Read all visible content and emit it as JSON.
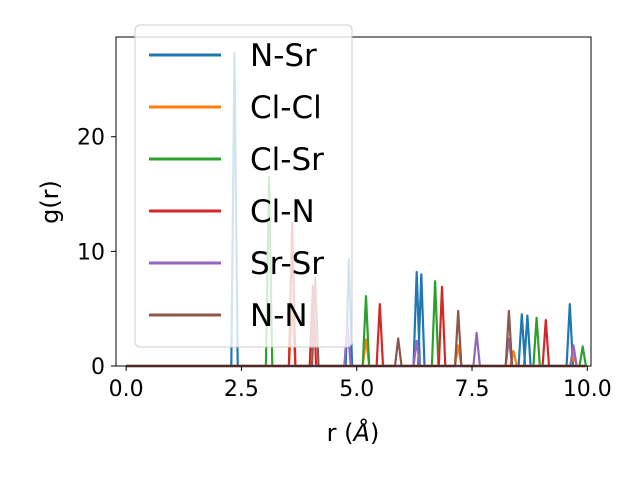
{
  "chart_data": {
    "type": "line",
    "xlabel_main": "r (",
    "xlabel_unit": "Å",
    "xlabel_close": ")",
    "ylabel": "g(r)",
    "xlim": [
      -0.22,
      10.08
    ],
    "ylim": [
      0,
      28.7
    ],
    "xticks": [
      0.0,
      2.5,
      5.0,
      7.5,
      10.0
    ],
    "xtick_labels": [
      "0.0",
      "2.5",
      "5.0",
      "7.5",
      "10.0"
    ],
    "yticks": [
      0,
      10,
      20
    ],
    "ytick_labels": [
      "0",
      "10",
      "20"
    ],
    "legend_position": "upper-left",
    "series": [
      {
        "name": "N-Sr",
        "color": "#1f77b4",
        "peaks": [
          [
            2.35,
            27.3
          ],
          [
            4.83,
            9.3
          ],
          [
            6.3,
            8.2
          ],
          [
            6.4,
            8.0
          ],
          [
            8.58,
            4.5
          ],
          [
            8.7,
            4.4
          ],
          [
            9.62,
            5.4
          ]
        ]
      },
      {
        "name": "Cl-Cl",
        "color": "#ff7f0e",
        "peaks": [
          [
            3.6,
            5.3
          ],
          [
            5.2,
            2.3
          ],
          [
            7.2,
            1.8
          ],
          [
            8.4,
            1.3
          ],
          [
            9.7,
            1.0
          ]
        ]
      },
      {
        "name": "Cl-Sr",
        "color": "#2ca02c",
        "peaks": [
          [
            3.1,
            16.5
          ],
          [
            5.2,
            6.1
          ],
          [
            6.7,
            7.4
          ],
          [
            8.9,
            4.2
          ],
          [
            9.9,
            1.7
          ]
        ]
      },
      {
        "name": "Cl-N",
        "color": "#d62728",
        "peaks": [
          [
            3.6,
            12.5
          ],
          [
            4.05,
            7.0
          ],
          [
            5.5,
            5.4
          ],
          [
            6.85,
            6.9
          ],
          [
            9.1,
            4.0
          ]
        ]
      },
      {
        "name": "Sr-Sr",
        "color": "#9467bd",
        "peaks": [
          [
            4.8,
            3.7
          ],
          [
            6.3,
            2.2
          ],
          [
            7.6,
            2.9
          ],
          [
            8.3,
            2.4
          ],
          [
            9.7,
            1.8
          ]
        ]
      },
      {
        "name": "N-N",
        "color": "#8c564b",
        "peaks": [
          [
            4.1,
            7.7
          ],
          [
            5.9,
            2.4
          ],
          [
            7.2,
            4.8
          ],
          [
            8.3,
            4.8
          ]
        ]
      }
    ]
  }
}
